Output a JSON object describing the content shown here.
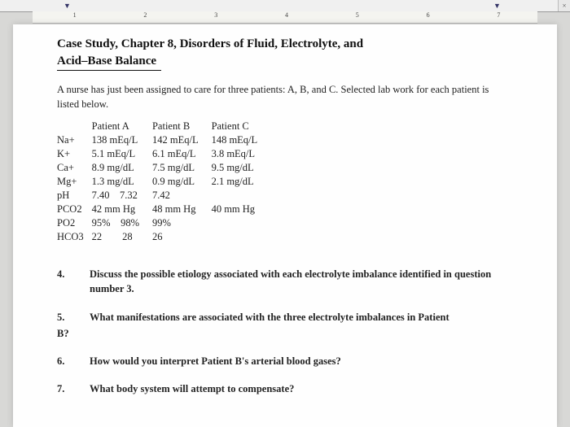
{
  "ruler": {
    "marks": [
      "1",
      "2",
      "3",
      "4",
      "5",
      "6",
      "7"
    ]
  },
  "title_line1": "Case Study, Chapter 8, Disorders of Fluid, Electrolyte, and",
  "title_line2": "Acid–Base Balance",
  "intro": "A nurse has just been assigned to care for three patients: A, B, and C. Selected lab work for each patient is listed below.",
  "table": {
    "headers": [
      "",
      "Patient A",
      "Patient B",
      "Patient C"
    ],
    "rows": [
      [
        "Na+",
        "138 mEq/L",
        "142 mEq/L",
        "148 mEq/L"
      ],
      [
        "K+",
        "5.1 mEq/L",
        "6.1 mEq/L",
        "3.8 mEq/L"
      ],
      [
        "Ca+",
        "8.9 mg/dL",
        "7.5 mg/dL",
        "9.5 mg/dL"
      ],
      [
        "Mg+",
        "1.3 mg/dL",
        "0.9 mg/dL",
        "2.1 mg/dL"
      ],
      [
        "pH",
        "7.40    7.32",
        "7.42",
        ""
      ],
      [
        "PCO2",
        "42 mm Hg",
        "48 mm Hg",
        "40 mm Hg"
      ],
      [
        "PO2",
        "95%    98%",
        "99%",
        ""
      ],
      [
        "HCO3",
        "22        28",
        "26",
        ""
      ]
    ]
  },
  "questions": [
    {
      "num": "4.",
      "text": "Discuss the possible etiology associated with each electrolyte imbalance identified in question number 3.",
      "bold": true,
      "trailing": ""
    },
    {
      "num": "5.",
      "text": "What manifestations are associated with the three electrolyte imbalances in Patient",
      "bold": true,
      "trailing": "B?"
    },
    {
      "num": "6.",
      "text": "How would you interpret Patient B's arterial blood gases?",
      "bold": true,
      "trailing": ""
    },
    {
      "num": "7.",
      "text": "What body system will attempt to compensate?",
      "bold": true,
      "trailing": ""
    }
  ]
}
